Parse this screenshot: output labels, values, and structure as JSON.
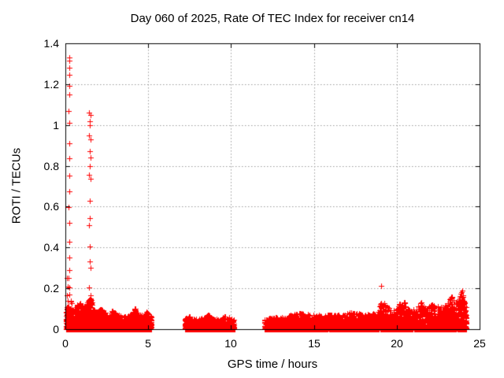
{
  "window": {
    "background": "#ffffff"
  },
  "chart_data": {
    "type": "scatter",
    "title": "Day 060 of 2025, Rate Of TEC Index for receiver cn14",
    "xlabel": "GPS time / hours",
    "ylabel": "ROTI / TECUs",
    "xlim": [
      0,
      25
    ],
    "ylim": [
      0,
      1.4
    ],
    "xticks": [
      0,
      5,
      10,
      15,
      20,
      25
    ],
    "xtick_labels": [
      "0",
      "5",
      "10",
      "15",
      "20",
      "25"
    ],
    "yticks": [
      0,
      0.2,
      0.4,
      0.6,
      0.8,
      1.0,
      1.2,
      1.4
    ],
    "ytick_labels": [
      "0",
      "0.2",
      "0.4",
      "0.6",
      "0.8",
      "1",
      "1.2",
      "1.4"
    ],
    "grid": true,
    "grid_style": "dotted",
    "grid_color": "#9c9c9c",
    "axis_color": "#000000",
    "legend": "none",
    "marker": {
      "shape": "plus",
      "color": "#ff0000",
      "size": 7
    },
    "seed": 42,
    "outliers": [
      [
        0.23,
        1.33
      ],
      [
        0.25,
        1.315
      ],
      [
        0.23,
        1.28
      ],
      [
        0.24,
        1.245
      ],
      [
        0.22,
        1.19
      ],
      [
        0.23,
        1.15
      ],
      [
        0.21,
        1.07
      ],
      [
        0.23,
        1.01
      ],
      [
        0.22,
        0.91
      ],
      [
        0.23,
        0.835
      ],
      [
        0.24,
        0.752
      ],
      [
        0.22,
        0.675
      ],
      [
        0.21,
        0.598
      ],
      [
        0.23,
        0.521
      ],
      [
        0.24,
        0.43
      ],
      [
        0.22,
        0.352
      ],
      [
        0.23,
        0.29
      ],
      [
        0.21,
        0.25
      ],
      [
        0.25,
        0.205
      ],
      [
        0.23,
        0.17
      ],
      [
        0.1,
        0.25
      ],
      [
        0.15,
        0.21
      ],
      [
        0.08,
        0.165
      ],
      [
        0.12,
        0.14
      ],
      [
        1.44,
        1.06
      ],
      [
        1.52,
        1.05
      ],
      [
        1.45,
        1.02
      ],
      [
        1.46,
        1.0
      ],
      [
        1.44,
        0.95
      ],
      [
        1.51,
        0.93
      ],
      [
        1.45,
        0.87
      ],
      [
        1.52,
        0.842
      ],
      [
        1.46,
        0.8
      ],
      [
        1.44,
        0.757
      ],
      [
        1.51,
        0.737
      ],
      [
        1.46,
        0.63
      ],
      [
        1.45,
        0.545
      ],
      [
        1.43,
        0.51
      ],
      [
        1.46,
        0.405
      ],
      [
        1.45,
        0.33
      ],
      [
        1.52,
        0.3
      ],
      [
        1.44,
        0.205
      ],
      [
        19.05,
        0.212
      ]
    ],
    "bands": [
      {
        "x0": 0.02,
        "x1": 5.2,
        "n": 2600,
        "exponent": 3,
        "envelope": [
          [
            0.0,
            0.11
          ],
          [
            0.3,
            0.12
          ],
          [
            0.5,
            0.09
          ],
          [
            0.75,
            0.125
          ],
          [
            0.95,
            0.13
          ],
          [
            1.15,
            0.1
          ],
          [
            1.35,
            0.14
          ],
          [
            1.5,
            0.17
          ],
          [
            1.65,
            0.12
          ],
          [
            1.9,
            0.085
          ],
          [
            2.1,
            0.1
          ],
          [
            2.35,
            0.09
          ],
          [
            2.6,
            0.065
          ],
          [
            2.85,
            0.09
          ],
          [
            3.1,
            0.075
          ],
          [
            3.4,
            0.06
          ],
          [
            3.7,
            0.065
          ],
          [
            4.0,
            0.075
          ],
          [
            4.2,
            0.105
          ],
          [
            4.45,
            0.08
          ],
          [
            4.7,
            0.065
          ],
          [
            4.95,
            0.09
          ],
          [
            5.2,
            0.06
          ]
        ],
        "spikes": [
          [
            0.35,
            0.14,
            10
          ],
          [
            0.75,
            0.125,
            12
          ],
          [
            0.9,
            0.13,
            12
          ],
          [
            1.3,
            0.14,
            14
          ],
          [
            1.45,
            0.185,
            20
          ],
          [
            1.55,
            0.15,
            12
          ],
          [
            2.05,
            0.1,
            8
          ],
          [
            2.2,
            0.095,
            8
          ],
          [
            2.85,
            0.09,
            8
          ],
          [
            4.2,
            0.105,
            10
          ],
          [
            4.9,
            0.095,
            8
          ]
        ]
      },
      {
        "x0": 7.2,
        "x1": 10.2,
        "n": 1100,
        "exponent": 3,
        "envelope": [
          [
            7.2,
            0.05
          ],
          [
            7.45,
            0.065
          ],
          [
            7.7,
            0.055
          ],
          [
            8.0,
            0.05
          ],
          [
            8.35,
            0.055
          ],
          [
            8.65,
            0.07
          ],
          [
            9.0,
            0.05
          ],
          [
            9.3,
            0.05
          ],
          [
            9.55,
            0.075
          ],
          [
            9.85,
            0.06
          ],
          [
            10.2,
            0.045
          ]
        ],
        "spikes": [
          [
            7.45,
            0.065,
            8
          ],
          [
            8.65,
            0.07,
            8
          ],
          [
            9.55,
            0.075,
            8
          ]
        ]
      },
      {
        "x0": 12.0,
        "x1": 24.2,
        "n": 4200,
        "exponent": 3,
        "envelope": [
          [
            12.0,
            0.05
          ],
          [
            12.4,
            0.055
          ],
          [
            12.8,
            0.06
          ],
          [
            13.2,
            0.055
          ],
          [
            13.6,
            0.07
          ],
          [
            14.0,
            0.075
          ],
          [
            14.4,
            0.08
          ],
          [
            14.8,
            0.07
          ],
          [
            15.2,
            0.07
          ],
          [
            15.6,
            0.065
          ],
          [
            16.0,
            0.075
          ],
          [
            16.4,
            0.07
          ],
          [
            16.8,
            0.075
          ],
          [
            17.2,
            0.08
          ],
          [
            17.6,
            0.08
          ],
          [
            18.0,
            0.07
          ],
          [
            18.4,
            0.08
          ],
          [
            18.8,
            0.085
          ],
          [
            19.05,
            0.13
          ],
          [
            19.3,
            0.125
          ],
          [
            19.6,
            0.1
          ],
          [
            19.9,
            0.095
          ],
          [
            20.15,
            0.125
          ],
          [
            20.45,
            0.13
          ],
          [
            20.8,
            0.09
          ],
          [
            21.1,
            0.1
          ],
          [
            21.45,
            0.135
          ],
          [
            21.8,
            0.1
          ],
          [
            22.1,
            0.12
          ],
          [
            22.45,
            0.115
          ],
          [
            22.75,
            0.11
          ],
          [
            23.05,
            0.12
          ],
          [
            23.3,
            0.17
          ],
          [
            23.55,
            0.13
          ],
          [
            23.8,
            0.165
          ],
          [
            23.95,
            0.19
          ],
          [
            24.05,
            0.16
          ],
          [
            24.2,
            0.11
          ]
        ],
        "spikes": [
          [
            13.6,
            0.07,
            8
          ],
          [
            14.3,
            0.08,
            10
          ],
          [
            16.0,
            0.075,
            8
          ],
          [
            17.3,
            0.08,
            8
          ],
          [
            18.6,
            0.085,
            8
          ],
          [
            19.05,
            0.13,
            14
          ],
          [
            19.3,
            0.125,
            12
          ],
          [
            20.15,
            0.125,
            12
          ],
          [
            20.45,
            0.13,
            12
          ],
          [
            21.45,
            0.135,
            14
          ],
          [
            22.1,
            0.12,
            10
          ],
          [
            23.05,
            0.12,
            10
          ],
          [
            23.3,
            0.17,
            16
          ],
          [
            23.8,
            0.165,
            14
          ],
          [
            23.95,
            0.19,
            16
          ],
          [
            24.05,
            0.16,
            12
          ],
          [
            24.1,
            0.14,
            10
          ]
        ]
      }
    ]
  }
}
